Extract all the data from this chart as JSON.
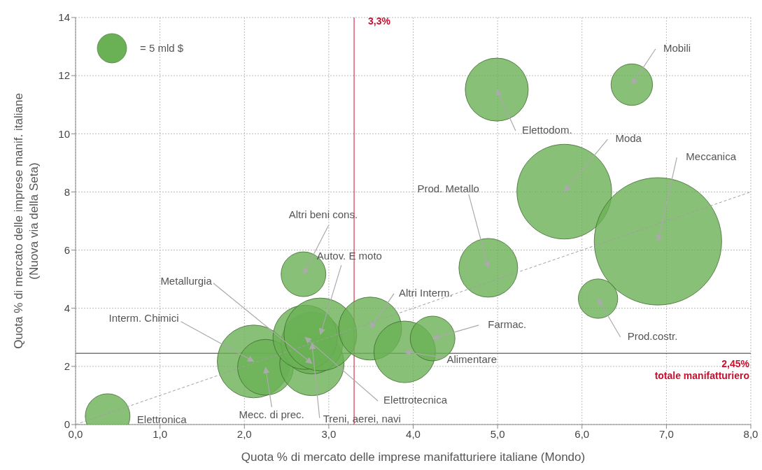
{
  "chart_data": {
    "type": "bubble",
    "xlabel": "Quota % di mercato delle imprese manifatturiere italiane (Mondo)",
    "ylabel": "Quota % di mercato delle imprese manif. italiane\n(Nuova via della Seta)",
    "xlim": [
      0,
      8
    ],
    "ylim": [
      0,
      14
    ],
    "xticks": [
      {
        "value": 0,
        "label": "0,0"
      },
      {
        "value": 1,
        "label": "1,0"
      },
      {
        "value": 2,
        "label": "2,0"
      },
      {
        "value": 3,
        "label": "3,0"
      },
      {
        "value": 4,
        "label": "4,0"
      },
      {
        "value": 5,
        "label": "5,0"
      },
      {
        "value": 6,
        "label": "6,0"
      },
      {
        "value": 7,
        "label": "7,0"
      },
      {
        "value": 8,
        "label": "8,0"
      }
    ],
    "yticks": [
      0,
      2,
      4,
      6,
      8,
      10,
      12,
      14
    ],
    "grid": true,
    "marker": "circle",
    "size_legend": [
      {
        "value": 5,
        "label": "= 5 mld $"
      }
    ],
    "series": [
      {
        "type": "bubble",
        "color": "#6ab055",
        "x": [
          0.38,
          2.11,
          2.25,
          2.8,
          2.8,
          2.72,
          2.9,
          2.7,
          3.49,
          3.9,
          4.23,
          4.89,
          4.99,
          6.59,
          5.79,
          6.9,
          6.19
        ],
        "values": [
          0.29,
          2.17,
          1.97,
          2.1,
          2.8,
          3.0,
          3.1,
          5.17,
          3.3,
          2.5,
          2.96,
          5.39,
          11.52,
          11.69,
          8.01,
          6.3,
          4.33
        ],
        "sizes": [
          11.6,
          30.7,
          18,
          24,
          22,
          24,
          30.7,
          11.6,
          23,
          22,
          11.6,
          20,
          23,
          10,
          52,
          94,
          9
        ]
      },
      {
        "type": "line",
        "color": "#a0a0a0",
        "line_style": "dashed",
        "marker": "none",
        "x": [
          0,
          8
        ],
        "values": [
          0,
          8
        ]
      }
    ],
    "ref_lines": [
      {
        "axis": "x",
        "value": 3.3,
        "label": "3,3%",
        "color": "#c8102e"
      },
      {
        "axis": "y",
        "value": 2.45,
        "label": "2,45%\ntotale manifatturiero",
        "color": "#333333"
      }
    ],
    "annotations": [
      {
        "text": "Elettronica",
        "x": 0.38,
        "y": 0.29
      },
      {
        "text": "Interm. Chimici",
        "x": 2.11,
        "y": 2.17
      },
      {
        "text": "Mecc. di prec.",
        "x": 2.25,
        "y": 1.97
      },
      {
        "text": "Metallurgia",
        "x": 2.8,
        "y": 2.1
      },
      {
        "text": "Treni, aerei, navi",
        "x": 2.8,
        "y": 2.8
      },
      {
        "text": "Elettrotecnica",
        "x": 2.72,
        "y": 3.0
      },
      {
        "text": "Autov. E moto",
        "x": 2.9,
        "y": 3.1
      },
      {
        "text": "Altri beni cons.",
        "x": 2.7,
        "y": 5.17
      },
      {
        "text": "Altri Interm.",
        "x": 3.49,
        "y": 3.3
      },
      {
        "text": "Alimentare",
        "x": 3.9,
        "y": 2.5
      },
      {
        "text": "Farmac.",
        "x": 4.23,
        "y": 2.96
      },
      {
        "text": "Prod. Metallo",
        "x": 4.89,
        "y": 5.39
      },
      {
        "text": "Elettodom.",
        "x": 4.99,
        "y": 11.52
      },
      {
        "text": "Mobili",
        "x": 6.59,
        "y": 11.69
      },
      {
        "text": "Moda",
        "x": 5.79,
        "y": 8.01
      },
      {
        "text": "Meccanica",
        "x": 6.9,
        "y": 6.3
      },
      {
        "text": "Prod.costr.",
        "x": 6.19,
        "y": 4.33
      }
    ]
  }
}
